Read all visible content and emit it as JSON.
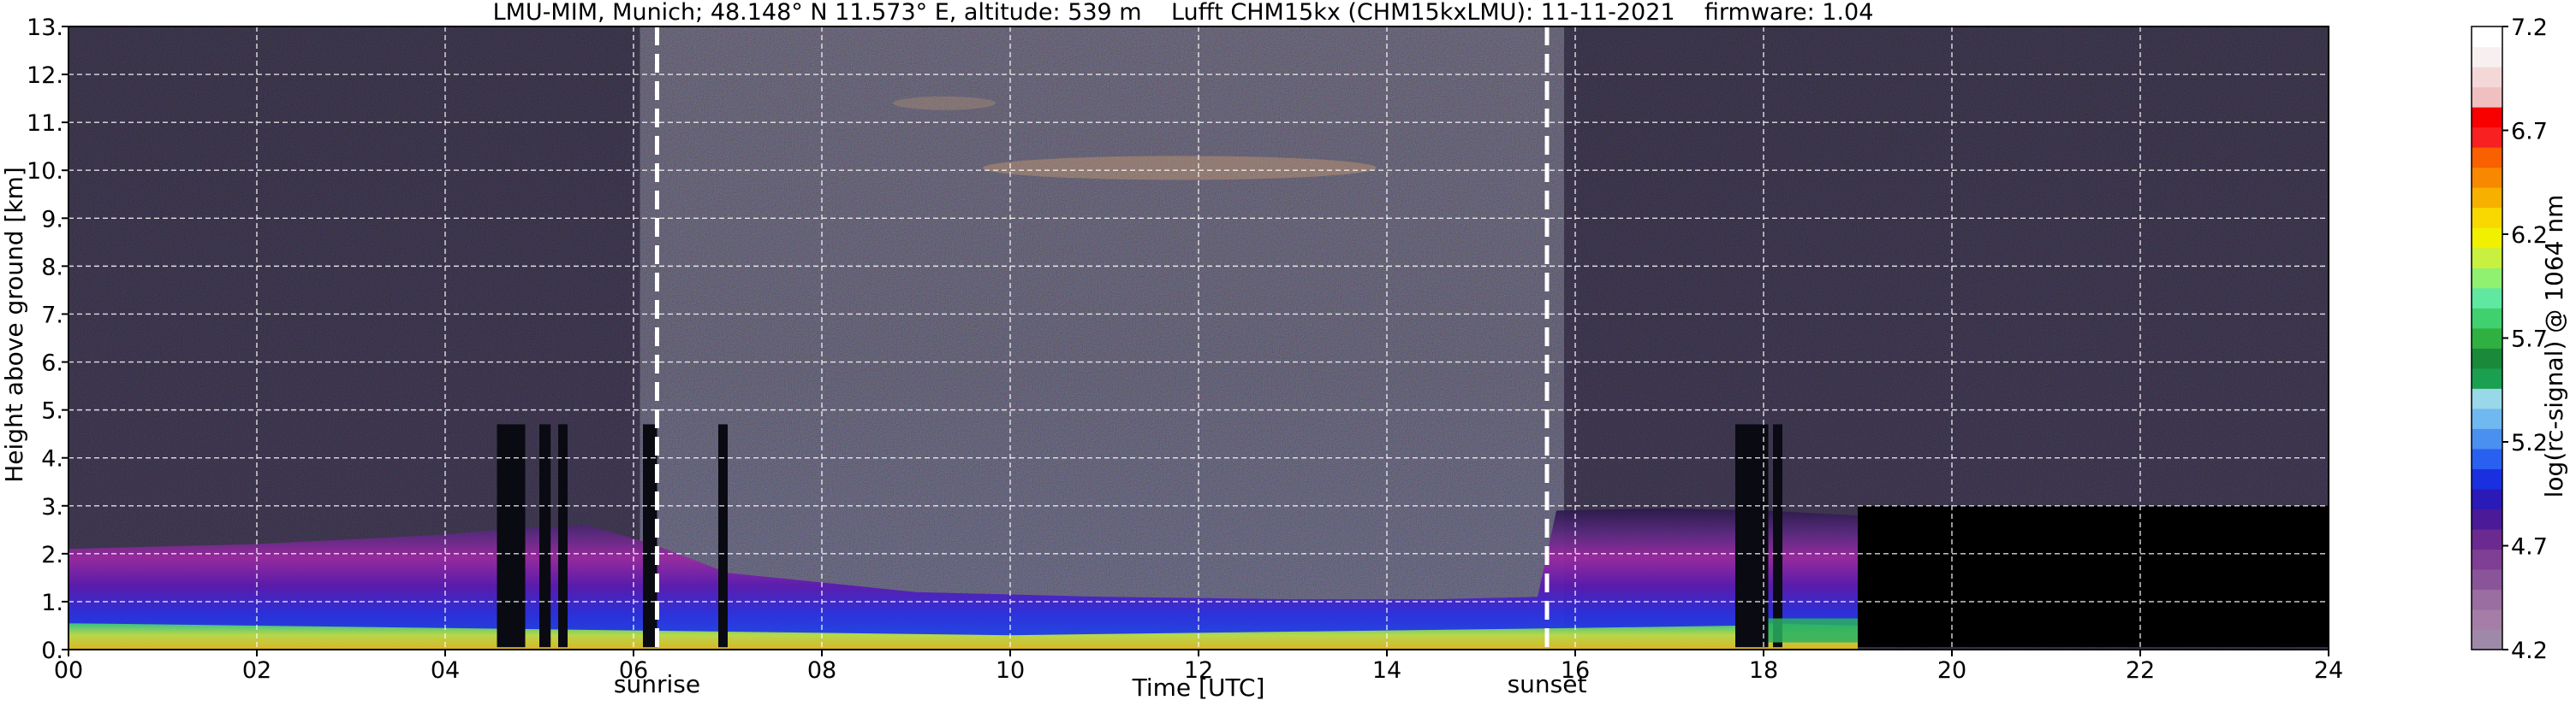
{
  "chart_data": {
    "type": "heatmap",
    "title": "LMU-MIM, Munich; 48.148° N 11.573° E, altitude: 539 m    Lufft CHM15kx (CHM15kxLMU): 11-11-2021    firmware: 1.04",
    "xlabel": "Time [UTC]",
    "ylabel": "Height above ground [km]",
    "xlim": [
      0,
      24
    ],
    "ylim": [
      0,
      13
    ],
    "x_ticks": [
      "00",
      "02",
      "04",
      "06",
      "08",
      "10",
      "12",
      "14",
      "16",
      "18",
      "20",
      "22",
      "24"
    ],
    "y_ticks": [
      "0.",
      "1.",
      "2.",
      "3.",
      "4.",
      "5.",
      "6.",
      "7.",
      "8.",
      "9.",
      "10.",
      "11.",
      "12.",
      "13."
    ],
    "grid": true,
    "markers": [
      {
        "label": "sunrise",
        "x": 6.25
      },
      {
        "label": "sunset",
        "x": 15.7
      }
    ],
    "colorbar": {
      "label": "log(rc-signal) @ 1064 nm",
      "range": [
        4.2,
        7.2
      ],
      "ticks": [
        "4.2",
        "4.7",
        "5.2",
        "5.7",
        "6.2",
        "6.7",
        "7.2"
      ],
      "colors": [
        "#9e8aa8",
        "#a47ea6",
        "#9a6ea0",
        "#8a5598",
        "#7e3f94",
        "#6a2a90",
        "#4a1a98",
        "#2a1ab8",
        "#1a30e0",
        "#2a60f0",
        "#4a90f0",
        "#70b8f0",
        "#98d8e8",
        "#1aa050",
        "#1a8a3a",
        "#30b040",
        "#40d070",
        "#60e8a0",
        "#90f070",
        "#c8f040",
        "#f0f000",
        "#f8d800",
        "#f8b000",
        "#f88800",
        "#f86000",
        "#f82020",
        "#f80000",
        "#f0c0c0",
        "#f4d8d8",
        "#f8f0f0",
        "#ffffff"
      ]
    }
  }
}
